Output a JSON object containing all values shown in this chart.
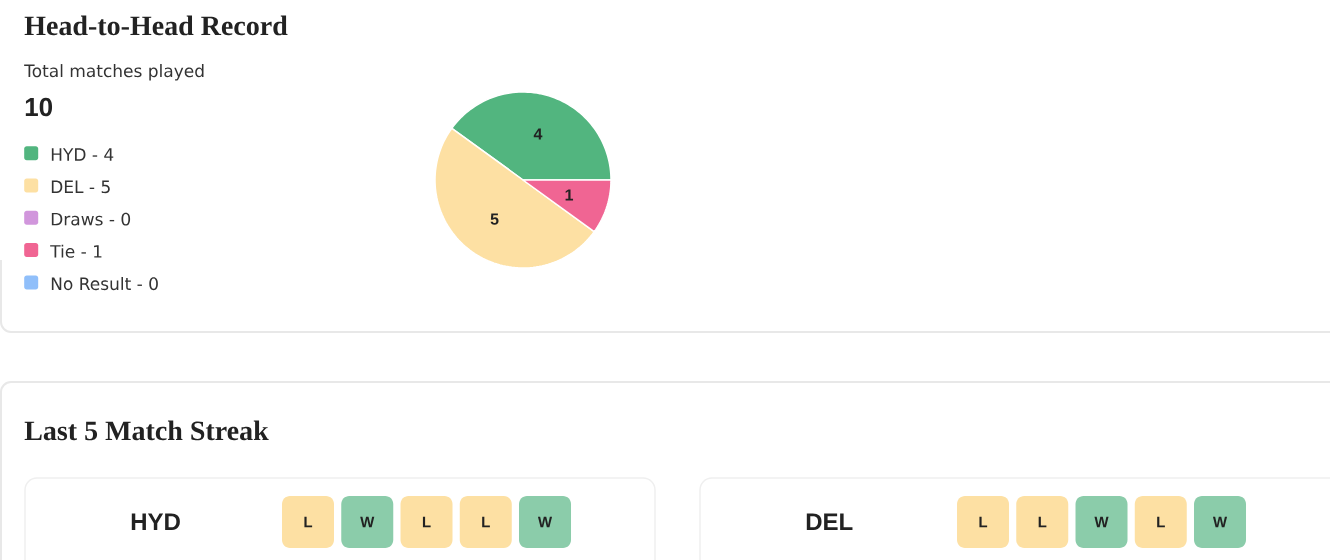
{
  "chart_data": [
    {
      "type": "pie",
      "title": "Head-to-Head Record",
      "subtitle": "Total matches played",
      "annotations": [
        "10"
      ],
      "categories": [
        "HYD - 4",
        "DEL - 5",
        "Draws - 0",
        "Tie - 1",
        "No Result - 0"
      ],
      "values": [
        4,
        5,
        0,
        1,
        0
      ],
      "colors": [
        "#52b57f",
        "#fde0a3",
        "#d196dc",
        "#f06593",
        "#90bffa"
      ],
      "value_labels": [
        "4",
        "5",
        null,
        "1",
        null
      ],
      "legend": "left"
    },
    {
      "type": "other",
      "title": "Last 5 Match Streak",
      "categories": [
        "HYD",
        "DEL"
      ],
      "annotations": [
        "L",
        "W",
        "L",
        "L",
        "W",
        "L",
        "L",
        "W",
        "L",
        "W"
      ],
      "colors": [
        "#fde0a3",
        "#8bccaa",
        "#fde0a3",
        "#fde0a3",
        "#8bccaa",
        "#fde0a3",
        "#fde0a3",
        "#8bccaa",
        "#fde0a3",
        "#8bccaa"
      ]
    }
  ]
}
